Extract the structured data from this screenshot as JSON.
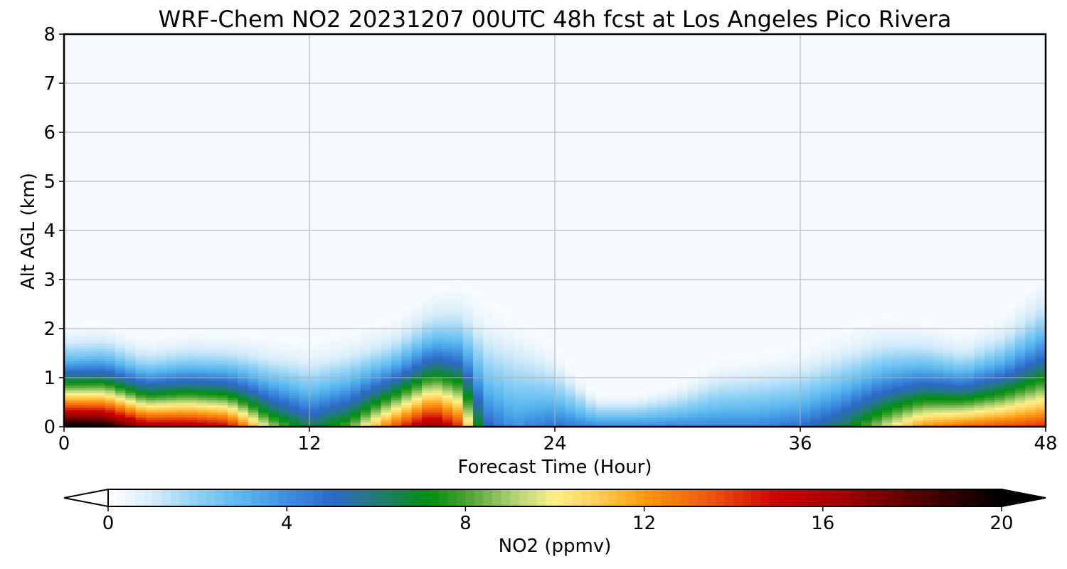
{
  "chart_data": {
    "type": "heatmap",
    "title": "WRF-Chem NO2  20231207 00UTC 48h fcst at Los Angeles Pico Rivera",
    "xlabel": "Forecast Time (Hour)",
    "ylabel": "Alt AGL (km)",
    "xlim": [
      0,
      48
    ],
    "ylim": [
      0,
      8
    ],
    "xticks": [
      0,
      12,
      24,
      36,
      48
    ],
    "yticks": [
      0,
      1,
      2,
      3,
      4,
      5,
      6,
      7,
      8
    ],
    "grid": true,
    "colorbar": {
      "label": "NO2  (ppmv)",
      "min": 0,
      "max": 20,
      "ticks": [
        0,
        4,
        8,
        12,
        16,
        20
      ],
      "extend": "both",
      "orientation": "horizontal",
      "stops": [
        {
          "v": 0,
          "c": "#ffffff"
        },
        {
          "v": 1,
          "c": "#d6ecfa"
        },
        {
          "v": 2,
          "c": "#8fd0f5"
        },
        {
          "v": 3,
          "c": "#5ab8ef"
        },
        {
          "v": 4,
          "c": "#3d8fe0"
        },
        {
          "v": 5,
          "c": "#2d68c7"
        },
        {
          "v": 6,
          "c": "#237a7a"
        },
        {
          "v": 7.2,
          "c": "#009010"
        },
        {
          "v": 8,
          "c": "#48a030"
        },
        {
          "v": 9,
          "c": "#a8d070"
        },
        {
          "v": 10,
          "c": "#fff08a"
        },
        {
          "v": 11,
          "c": "#ffcc55"
        },
        {
          "v": 12,
          "c": "#ff9a10"
        },
        {
          "v": 13.5,
          "c": "#ee5510"
        },
        {
          "v": 15,
          "c": "#cc0000"
        },
        {
          "v": 16.5,
          "c": "#a00000"
        },
        {
          "v": 18,
          "c": "#5a0000"
        },
        {
          "v": 20,
          "c": "#000000"
        }
      ]
    },
    "series": [
      {
        "hour": [
          0,
          2,
          4,
          6,
          8,
          10,
          12,
          14,
          16,
          18,
          19.3,
          20.5,
          22,
          24,
          26,
          28,
          30,
          32,
          34,
          36,
          38,
          40,
          42,
          44,
          46,
          48
        ],
        "mixing_top_km": [
          1.45,
          1.5,
          1.3,
          1.4,
          1.4,
          1.4,
          1.4,
          1.5,
          1.6,
          2.0,
          2.1,
          2.1,
          2.0,
          1.4,
          0.6,
          0.6,
          0.8,
          1.2,
          1.3,
          1.4,
          1.6,
          1.7,
          1.6,
          1.4,
          1.7,
          2.3
        ],
        "surface_no2": [
          19.5,
          19,
          15,
          15,
          14,
          8,
          5,
          7,
          12,
          16,
          13,
          4,
          2.5,
          3.5,
          3,
          3,
          3,
          3,
          3,
          3.5,
          5,
          8,
          11,
          12,
          12.5,
          13
        ]
      }
    ]
  }
}
